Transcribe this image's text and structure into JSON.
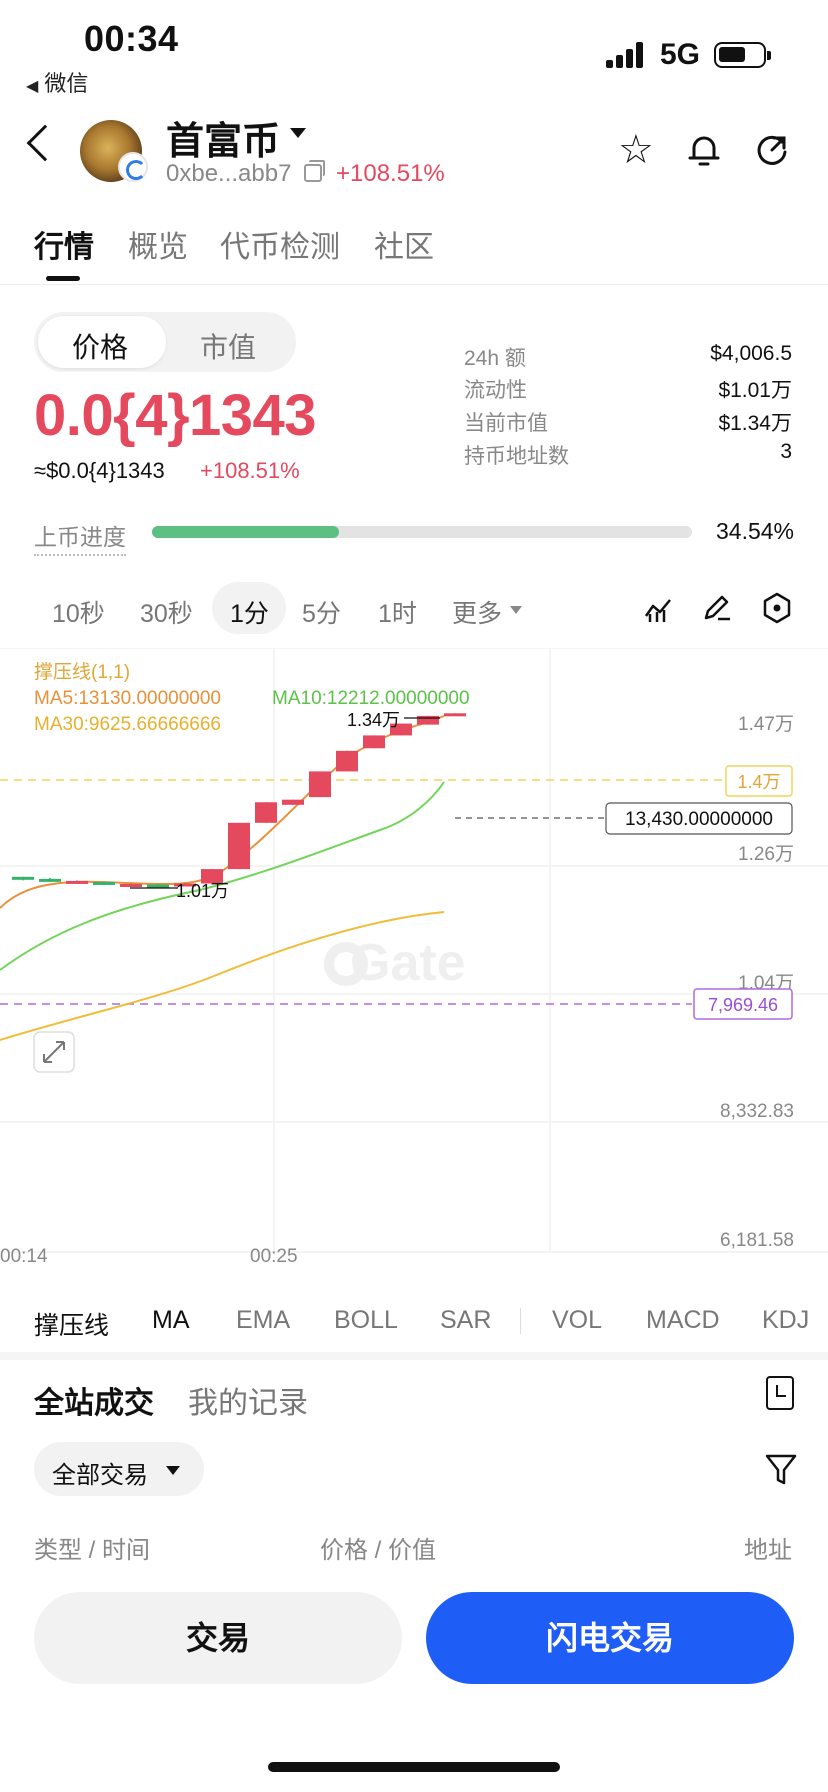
{
  "status_bar": {
    "time": "00:34",
    "back_app": "微信",
    "network": "5G"
  },
  "header": {
    "token_name": "首富币",
    "address": "0xbe...abb7",
    "change": "+108.51%"
  },
  "tabs": [
    "行情",
    "概览",
    "代币检测",
    "社区"
  ],
  "price_toggle": {
    "price": "价格",
    "market_cap": "市值"
  },
  "price": {
    "main": "0.0{4}1343",
    "usd": "≈$0.0{4}1343",
    "change": "+108.51%"
  },
  "stats": [
    {
      "label": "24h  额",
      "value": "$4,006.5"
    },
    {
      "label": "流动性",
      "value": "$1.01万"
    },
    {
      "label": "当前市值",
      "value": "$1.34万"
    },
    {
      "label": "持币地址数",
      "value": "3"
    }
  ],
  "progress": {
    "label": "上币进度",
    "value_text": "34.54%",
    "fraction": 0.3454
  },
  "intervals": [
    "10秒",
    "30秒",
    "1分",
    "5分",
    "1时",
    "更多"
  ],
  "chart": {
    "indicator_title": "撑压线(1,1)",
    "ma5": "MA5:13130.00000000",
    "ma10": "MA10:12212.00000000",
    "ma30": "MA30:9625.66666666",
    "y_axis_labels": [
      "1.47万",
      "1.26万",
      "1.04万",
      "8,332.83",
      "6,181.58"
    ],
    "resistance_label": "1.4万",
    "current_price_label": "13,430.00000000",
    "support_label": "7,969.46",
    "high_label": "1.34万",
    "low_label": "1.01万",
    "x_axis_labels": [
      "00:14",
      "00:25"
    ],
    "watermark": "Gate",
    "colors": {
      "up": "#e5495e",
      "down": "#35b26b",
      "ma5": "#e8913a",
      "ma10": "#72d45a",
      "ma30": "#f0bd3a",
      "resistance": "#f2d35c",
      "support": "#b26ae0"
    }
  },
  "chart_data": {
    "type": "candlestick",
    "y_range": [
      6181.58,
      14700
    ],
    "candles": [
      {
        "open": 10250,
        "close": 10200,
        "high": 10250,
        "low": 10180
      },
      {
        "open": 10210,
        "close": 10160,
        "high": 10230,
        "low": 10150
      },
      {
        "open": 10160,
        "close": 10170,
        "high": 10180,
        "low": 10150
      },
      {
        "open": 10150,
        "close": 10100,
        "high": 10160,
        "low": 10090
      },
      {
        "open": 10100,
        "close": 10110,
        "high": 10120,
        "low": 10100
      },
      {
        "open": 10100,
        "close": 10080,
        "high": 10110,
        "low": 10070
      },
      {
        "open": 10080,
        "close": 10120,
        "high": 10130,
        "low": 10070
      },
      {
        "open": 10120,
        "close": 10400,
        "high": 10400,
        "low": 10100
      },
      {
        "open": 10400,
        "close": 11300,
        "high": 11300,
        "low": 10400
      },
      {
        "open": 11300,
        "close": 11700,
        "high": 11700,
        "low": 11300
      },
      {
        "open": 11650,
        "close": 11750,
        "high": 11750,
        "low": 11650
      },
      {
        "open": 11800,
        "close": 12300,
        "high": 12300,
        "low": 11800
      },
      {
        "open": 12300,
        "close": 12700,
        "high": 12700,
        "low": 12300
      },
      {
        "open": 12750,
        "close": 13000,
        "high": 13000,
        "low": 12750
      },
      {
        "open": 13000,
        "close": 13230,
        "high": 13230,
        "low": 13000
      },
      {
        "open": 13210,
        "close": 13380,
        "high": 13380,
        "low": 13210
      },
      {
        "open": 13390,
        "close": 13430,
        "high": 13430,
        "low": 13390
      }
    ]
  },
  "indicators": [
    "撑压线",
    "MA",
    "EMA",
    "BOLL",
    "SAR",
    "VOL",
    "MACD",
    "KDJ"
  ],
  "trades": {
    "tab_all": "全站成交",
    "tab_mine": "我的记录",
    "filter": "全部交易",
    "col_type": "类型 / 时间",
    "col_price": "价格 / 价值",
    "col_address": "地址"
  },
  "buttons": {
    "trade": "交易",
    "flash": "闪电交易"
  }
}
